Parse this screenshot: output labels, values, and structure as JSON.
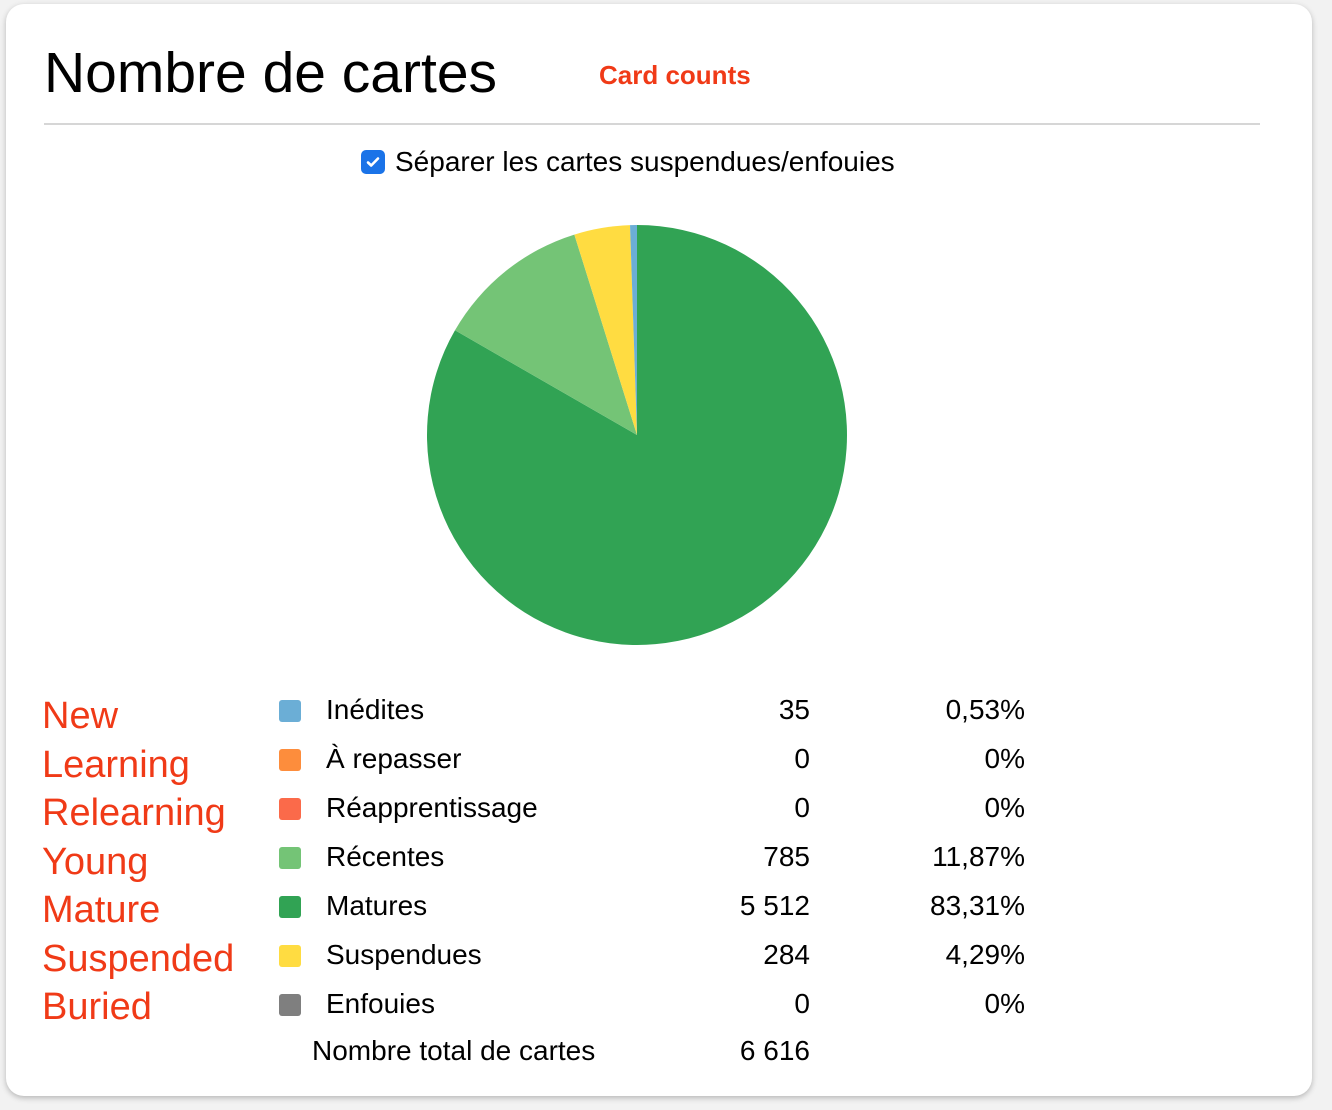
{
  "header": {
    "title": "Nombre de cartes",
    "subtitle": "Card counts"
  },
  "toggle": {
    "label": "Séparer les cartes suspendues/enfouies",
    "checked": true
  },
  "annotations": [
    "New",
    "Learning",
    "Relearning",
    "Young",
    "Mature",
    "Suspended",
    "Buried"
  ],
  "chart_data": {
    "type": "pie",
    "title": "Nombre de cartes",
    "start": "top",
    "direction": "clockwise",
    "pie_order": [
      "Matures",
      "Récentes",
      "Suspendues",
      "Inédites"
    ],
    "slices": [
      {
        "label": "Inédites",
        "count": 35,
        "count_text": "35",
        "percent_text": "0,53%",
        "value": 0.53,
        "color": "#6baed6"
      },
      {
        "label": "À repasser",
        "count": 0,
        "count_text": "0",
        "percent_text": "0%",
        "value": 0,
        "color": "#fd8d3c"
      },
      {
        "label": "Réapprentissage",
        "count": 0,
        "count_text": "0",
        "percent_text": "0%",
        "value": 0,
        "color": "#fb6a4a"
      },
      {
        "label": "Récentes",
        "count": 785,
        "count_text": "785",
        "percent_text": "11,87%",
        "value": 11.87,
        "color": "#74c476"
      },
      {
        "label": "Matures",
        "count": 5512,
        "count_text": "5 512",
        "percent_text": "83,31%",
        "value": 83.31,
        "color": "#31a354"
      },
      {
        "label": "Suspendues",
        "count": 284,
        "count_text": "284",
        "percent_text": "4,29%",
        "value": 4.29,
        "color": "#ffdc41"
      },
      {
        "label": "Enfouies",
        "count": 0,
        "count_text": "0",
        "percent_text": "0%",
        "value": 0,
        "color": "#7f7f7f"
      }
    ],
    "total_label": "Nombre total de cartes",
    "total_text": "6 616"
  }
}
